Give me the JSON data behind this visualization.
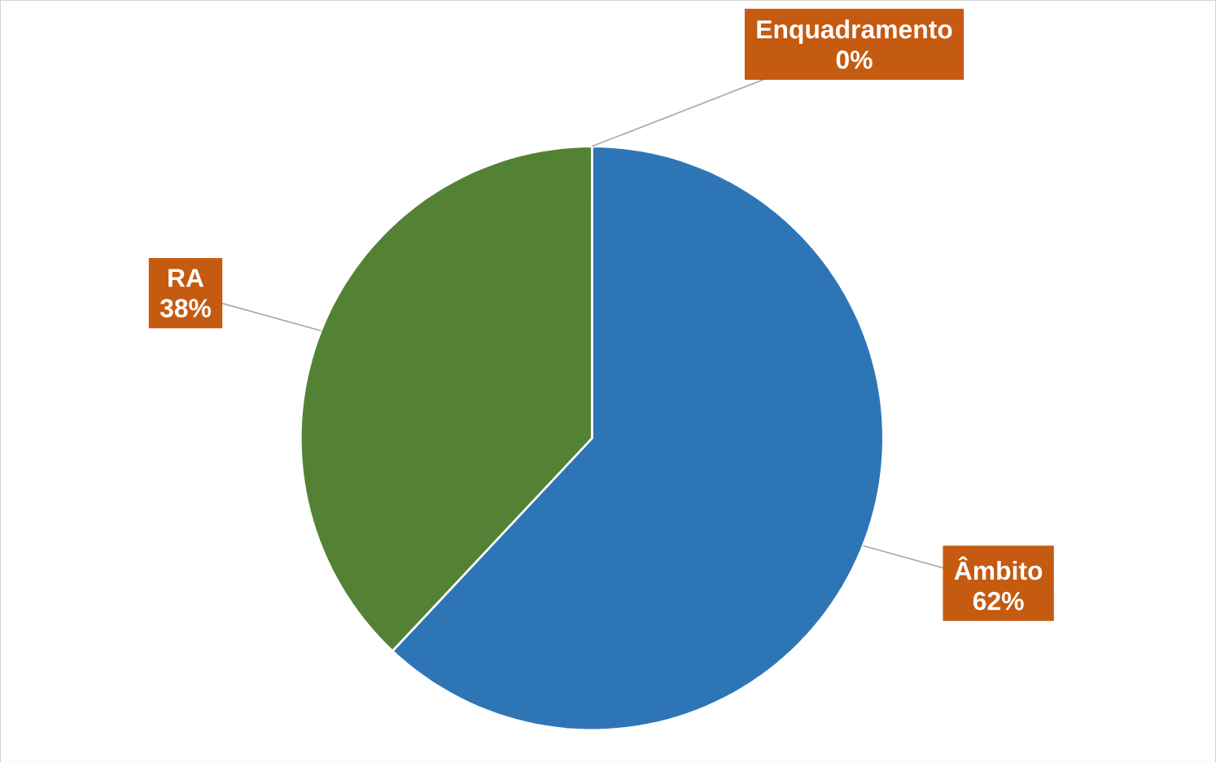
{
  "chart_data": {
    "type": "pie",
    "categories": [
      "Enquadramento",
      "Âmbito",
      "RA"
    ],
    "values": [
      0,
      62,
      38
    ],
    "value_labels": [
      "0%",
      "62%",
      "38%"
    ],
    "colors": [
      "#ed7d31",
      "#2e75b6",
      "#548235"
    ]
  }
}
